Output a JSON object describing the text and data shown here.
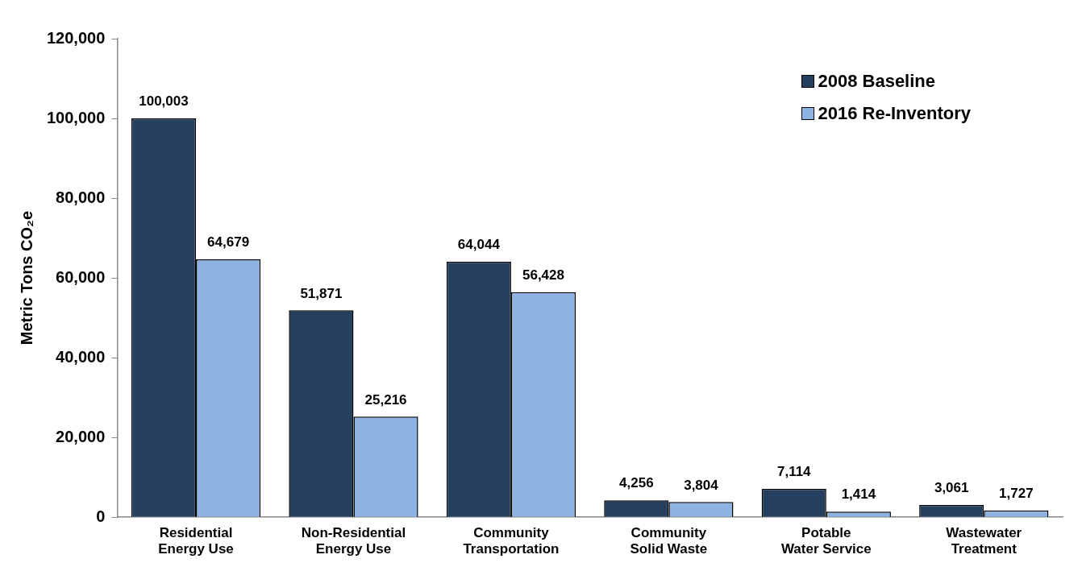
{
  "chart_data": {
    "type": "bar",
    "ylabel": "Metric Tons CO₂e",
    "categories": [
      "Residential Energy Use",
      "Non-Residential Energy Use",
      "Community Transportation",
      "Community Solid Waste",
      "Potable Water Service",
      "Wastewater Treatment"
    ],
    "series": [
      {
        "name": "2008 Baseline",
        "color": "#253f5f",
        "values": [
          100003,
          51871,
          64044,
          4256,
          7114,
          3061
        ],
        "value_labels": [
          "100,003",
          "51,871",
          "64,044",
          "4,256",
          "7,114",
          "3,061"
        ]
      },
      {
        "name": "2016 Re-Inventory",
        "color": "#8db3e2",
        "values": [
          64679,
          25216,
          56428,
          3804,
          1414,
          1727
        ],
        "value_labels": [
          "64,679",
          "25,216",
          "56,428",
          "3,804",
          "1,414",
          "1,727"
        ]
      }
    ],
    "ylim": [
      0,
      120000
    ],
    "yticks": [
      {
        "value": 0,
        "label": "0"
      },
      {
        "value": 20000,
        "label": "20,000"
      },
      {
        "value": 40000,
        "label": "40,000"
      },
      {
        "value": 60000,
        "label": "60,000"
      },
      {
        "value": 80000,
        "label": "80,000"
      },
      {
        "value": 100000,
        "label": "100,000"
      },
      {
        "value": 120000,
        "label": "120,000"
      }
    ],
    "grid": false,
    "legend": "top right"
  }
}
